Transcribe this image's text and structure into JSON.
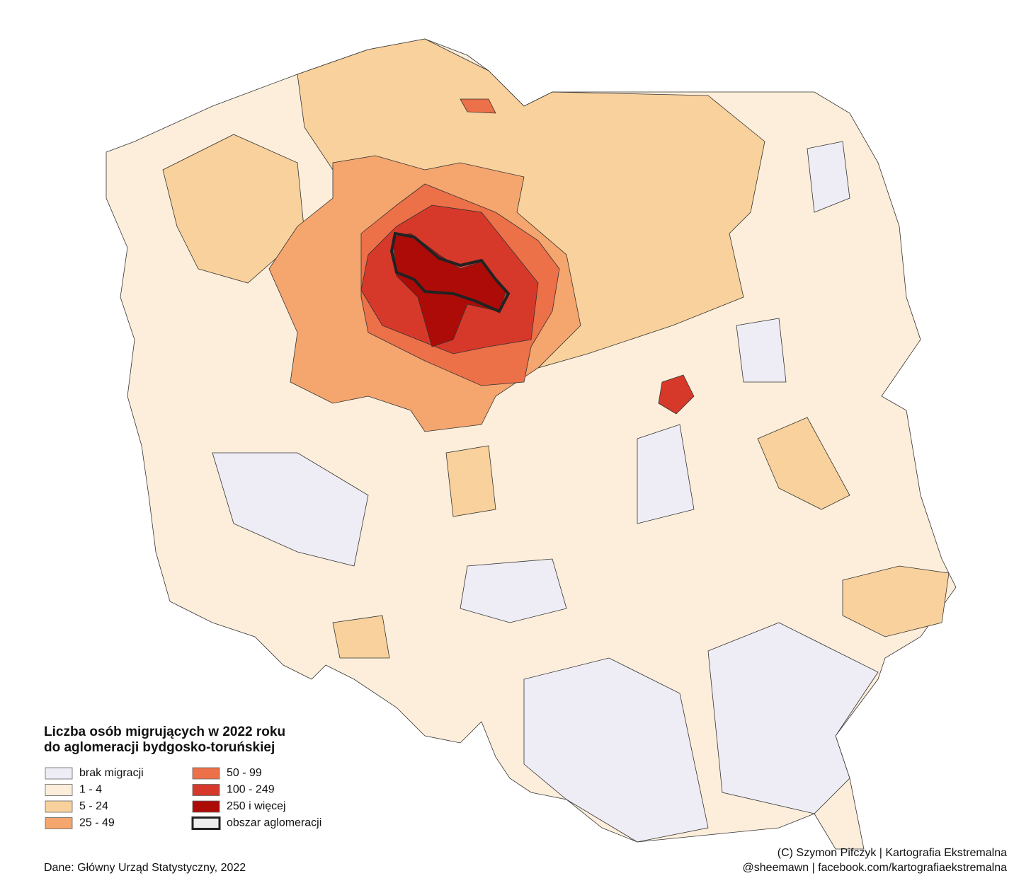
{
  "legend": {
    "title": [
      "Liczba osób migrujących w 2022 roku",
      "do aglomeracji bydgosko-toruńskiej"
    ],
    "items": [
      {
        "label": "brak migracji",
        "color": "#eeedf6"
      },
      {
        "label": "1 - 4",
        "color": "#fdeedb"
      },
      {
        "label": "5 - 24",
        "color": "#f9d19c"
      },
      {
        "label": "25 - 49",
        "color": "#f5a56e"
      },
      {
        "label": "50 - 99",
        "color": "#ec7048"
      },
      {
        "label": "100 - 249",
        "color": "#d6392a"
      },
      {
        "label": "250 i więcej",
        "color": "#ad0b07"
      },
      {
        "label": "obszar aglomeracji",
        "color": "#eeeeee"
      }
    ]
  },
  "credits": {
    "source": "Dane: Główny Urząd Statystyczny, 2022",
    "author": "(C) Szymon Pifczyk | Kartografia Ekstremalna",
    "social": "@sheemawn | facebook.com/kartografiaekstremalna"
  }
}
